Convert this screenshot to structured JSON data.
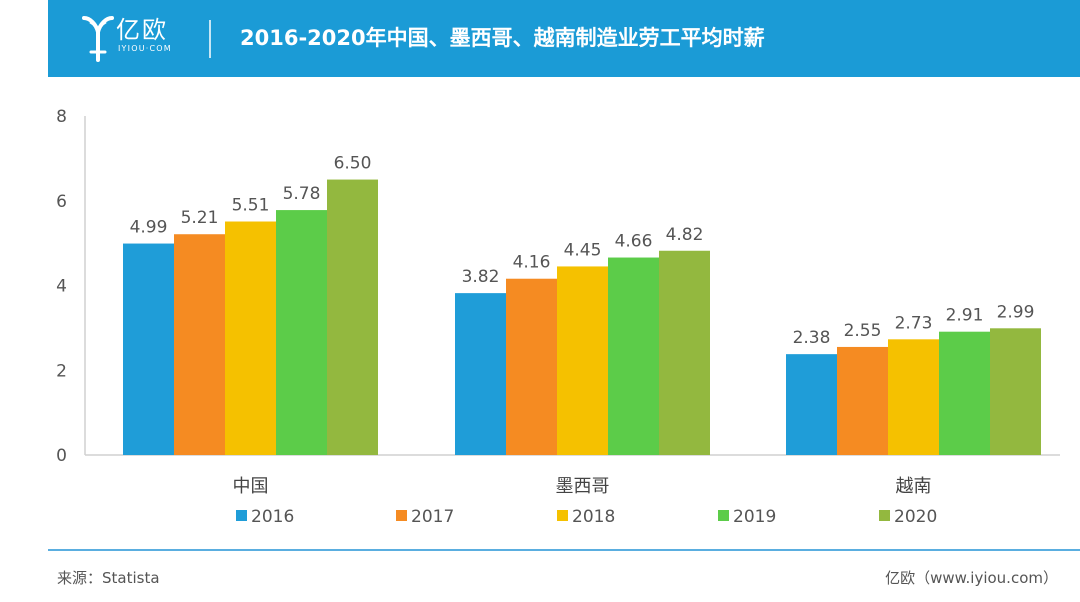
{
  "header": {
    "brand": "亿欧",
    "brand_sub": "IYIOU·COM",
    "title": "2016-2020年中国、墨西哥、越南制造业劳工平均时薪"
  },
  "colors": {
    "header_bg": "#1b9bd6",
    "2016": "#1f9dd8",
    "2017": "#f58b22",
    "2018": "#f5c100",
    "2019": "#5ccc49",
    "2020": "#93b83f"
  },
  "chart_data": {
    "type": "bar",
    "categories": [
      "中国",
      "墨西哥",
      "越南"
    ],
    "series": [
      {
        "name": "2016",
        "values": [
          4.99,
          3.82,
          2.38
        ],
        "color": "#1f9dd8"
      },
      {
        "name": "2017",
        "values": [
          5.21,
          4.16,
          2.55
        ],
        "color": "#f58b22"
      },
      {
        "name": "2018",
        "values": [
          5.51,
          4.45,
          2.73
        ],
        "color": "#f5c100"
      },
      {
        "name": "2019",
        "values": [
          5.78,
          4.66,
          2.91
        ],
        "color": "#5ccc49"
      },
      {
        "name": "2020",
        "values": [
          6.5,
          4.82,
          2.99
        ],
        "color": "#93b83f"
      }
    ],
    "ylim": [
      0,
      8
    ],
    "yticks": [
      0,
      2,
      4,
      6,
      8
    ],
    "data_labels": [
      [
        "4.99",
        "3.82",
        "2.38"
      ],
      [
        "5.21",
        "4.16",
        "2.55"
      ],
      [
        "5.51",
        "4.45",
        "2.73"
      ],
      [
        "5.78",
        "4.66",
        "2.91"
      ],
      [
        "6.50",
        "4.82",
        "2.99"
      ]
    ],
    "legend_position": "bottom",
    "grid": false
  },
  "footer": {
    "source": "来源：Statista",
    "site": "亿欧（www.iyiou.com）"
  }
}
